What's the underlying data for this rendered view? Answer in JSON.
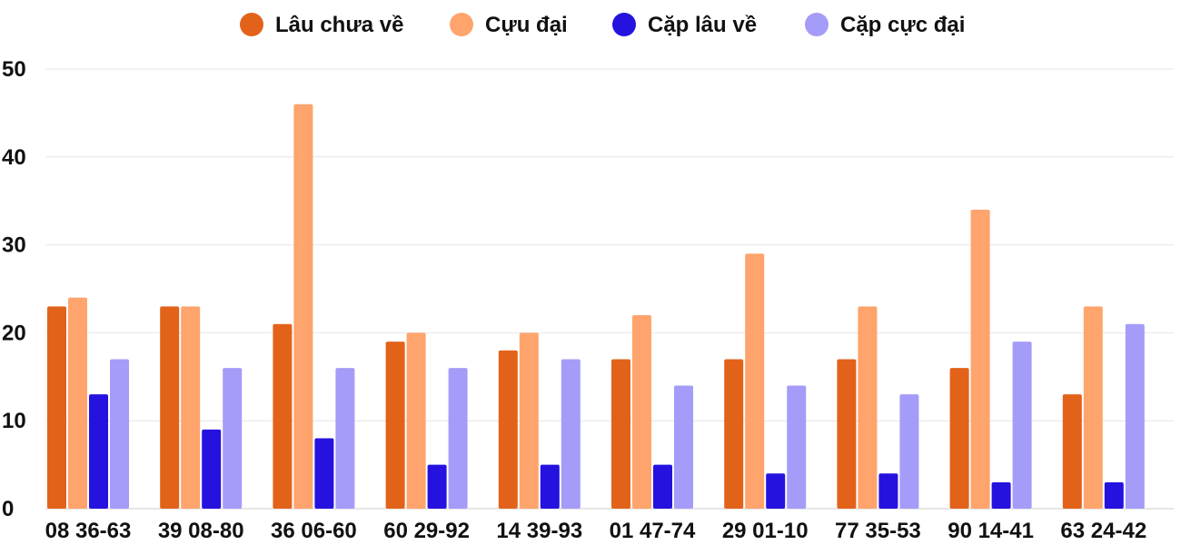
{
  "chart_data": {
    "type": "bar",
    "categories": [
      "08 36-63",
      "39 08-80",
      "36 06-60",
      "60 29-92",
      "14 39-93",
      "01 47-74",
      "29 01-10",
      "77 35-53",
      "90 14-41",
      "63 24-42"
    ],
    "series": [
      {
        "name": "Lâu chưa về",
        "color": "#E2621A",
        "values": [
          23,
          23,
          21,
          19,
          18,
          17,
          17,
          17,
          16,
          13
        ]
      },
      {
        "name": "Cựu đại",
        "color": "#FEA46C",
        "values": [
          24,
          23,
          46,
          20,
          20,
          22,
          29,
          23,
          34,
          23
        ]
      },
      {
        "name": "Cặp lâu về",
        "color": "#2512DF",
        "values": [
          13,
          9,
          8,
          5,
          5,
          5,
          4,
          4,
          3,
          3
        ]
      },
      {
        "name": "Cặp cực đại",
        "color": "#A49CF8",
        "values": [
          17,
          16,
          16,
          16,
          17,
          14,
          14,
          13,
          19,
          21
        ]
      }
    ],
    "ylim": [
      0,
      50
    ],
    "yticks": [
      "0",
      "10",
      "20",
      "30",
      "40",
      "50"
    ],
    "grid": true,
    "legend": "top-center"
  }
}
